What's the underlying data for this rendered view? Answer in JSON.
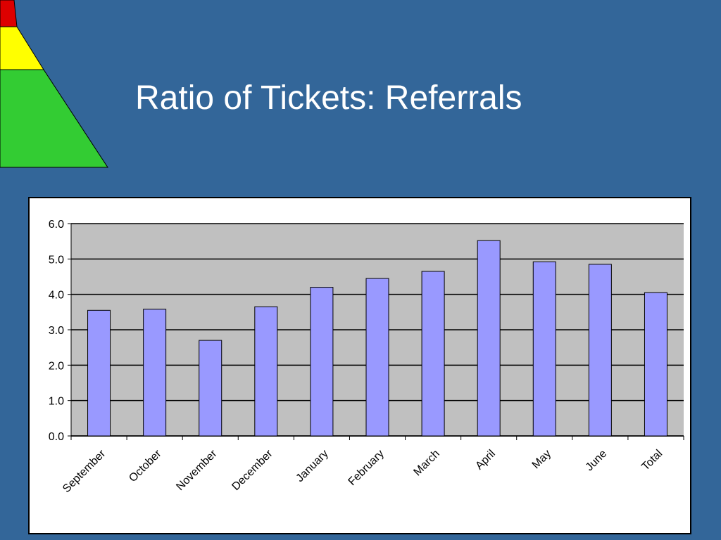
{
  "slide": {
    "title": "Ratio of Tickets: Referrals"
  },
  "decoration": {
    "pyramid_colors": [
      "#dd0000",
      "#ffff00",
      "#33cc33"
    ]
  },
  "colors": {
    "background": "#336699",
    "plot_area": "#c0c0c0",
    "bar_fill": "#9999ff",
    "bar_stroke": "#000000"
  },
  "chart_data": {
    "type": "bar",
    "categories": [
      "September",
      "October",
      "November",
      "December",
      "January",
      "February",
      "March",
      "April",
      "May",
      "June",
      "Total"
    ],
    "values": [
      3.55,
      3.58,
      2.7,
      3.65,
      4.2,
      4.45,
      4.65,
      5.52,
      4.92,
      4.85,
      4.05
    ],
    "ylim": [
      0,
      6
    ],
    "yticks": [
      "0.0",
      "1.0",
      "2.0",
      "3.0",
      "4.0",
      "5.0",
      "6.0"
    ],
    "grid": true,
    "legend": "none"
  }
}
